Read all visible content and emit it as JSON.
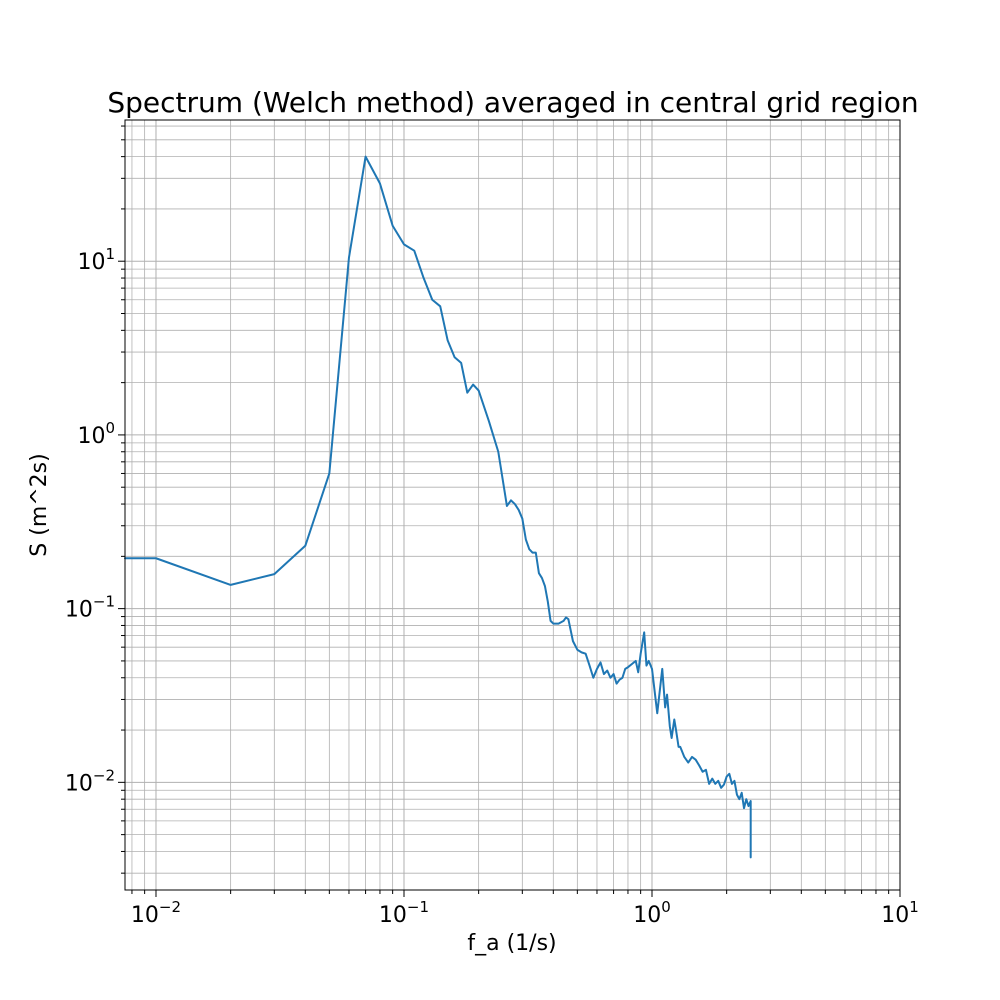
{
  "chart_data": {
    "type": "line",
    "title": "Spectrum (Welch method) averaged in central grid region",
    "xlabel": "f_a (1/s)",
    "ylabel": "S (m^2s)",
    "xscale": "log",
    "yscale": "log",
    "xlim": [
      0.0075,
      10
    ],
    "ylim": [
      0.0024,
      65
    ],
    "grid": "on (major and minor)",
    "xticks": [
      {
        "base": "10",
        "exp": "−2",
        "value": 0.01
      },
      {
        "base": "10",
        "exp": "−1",
        "value": 0.1
      },
      {
        "base": "10",
        "exp": "0",
        "value": 1
      },
      {
        "base": "10",
        "exp": "1",
        "value": 10
      }
    ],
    "yticks": [
      {
        "base": "10",
        "exp": "−2",
        "value": 0.01
      },
      {
        "base": "10",
        "exp": "−1",
        "value": 0.1
      },
      {
        "base": "10",
        "exp": "0",
        "value": 1
      },
      {
        "base": "10",
        "exp": "1",
        "value": 10
      }
    ],
    "colors": {
      "series": "#1f77b4",
      "grid": "#b0b0b0"
    },
    "series": [
      {
        "x": [
          0.0075,
          0.01,
          0.02,
          0.03,
          0.04,
          0.05,
          0.06,
          0.07,
          0.08,
          0.09,
          0.1,
          0.11,
          0.12,
          0.13,
          0.14,
          0.15,
          0.16,
          0.17,
          0.18,
          0.19,
          0.2,
          0.22,
          0.24,
          0.26,
          0.27,
          0.28,
          0.29,
          0.3,
          0.31,
          0.32,
          0.33,
          0.34,
          0.35,
          0.36,
          0.37,
          0.38,
          0.39,
          0.4,
          0.42,
          0.44,
          0.45,
          0.46,
          0.48,
          0.5,
          0.52,
          0.54,
          0.56,
          0.58,
          0.6,
          0.62,
          0.64,
          0.66,
          0.68,
          0.7,
          0.72,
          0.74,
          0.76,
          0.78,
          0.8,
          0.83,
          0.86,
          0.88,
          0.9,
          0.93,
          0.95,
          0.97,
          1.0,
          1.05,
          1.1,
          1.13,
          1.15,
          1.18,
          1.2,
          1.23,
          1.25,
          1.28,
          1.3,
          1.35,
          1.4,
          1.45,
          1.5,
          1.55,
          1.6,
          1.65,
          1.7,
          1.75,
          1.8,
          1.85,
          1.9,
          1.95,
          2.0,
          2.05,
          2.1,
          2.15,
          2.2,
          2.25,
          2.3,
          2.35,
          2.4,
          2.45,
          2.5,
          2.5
        ],
        "y": [
          0.195,
          0.195,
          0.137,
          0.158,
          0.23,
          0.6,
          10.5,
          40.0,
          28.0,
          16.0,
          12.5,
          11.5,
          8.0,
          6.0,
          5.5,
          3.5,
          2.8,
          2.6,
          1.75,
          1.95,
          1.8,
          1.2,
          0.8,
          0.39,
          0.42,
          0.4,
          0.37,
          0.33,
          0.25,
          0.22,
          0.21,
          0.21,
          0.16,
          0.15,
          0.135,
          0.11,
          0.085,
          0.082,
          0.082,
          0.085,
          0.089,
          0.087,
          0.065,
          0.058,
          0.056,
          0.055,
          0.047,
          0.04,
          0.045,
          0.049,
          0.042,
          0.044,
          0.04,
          0.042,
          0.037,
          0.039,
          0.04,
          0.045,
          0.046,
          0.048,
          0.05,
          0.043,
          0.055,
          0.073,
          0.047,
          0.05,
          0.045,
          0.025,
          0.045,
          0.027,
          0.032,
          0.021,
          0.018,
          0.023,
          0.02,
          0.016,
          0.016,
          0.014,
          0.013,
          0.014,
          0.0135,
          0.0125,
          0.0115,
          0.0118,
          0.0098,
          0.0105,
          0.0098,
          0.0102,
          0.0093,
          0.0097,
          0.0108,
          0.0112,
          0.0098,
          0.0102,
          0.0085,
          0.008,
          0.0087,
          0.0071,
          0.008,
          0.0073,
          0.0078,
          0.0037
        ]
      }
    ]
  }
}
